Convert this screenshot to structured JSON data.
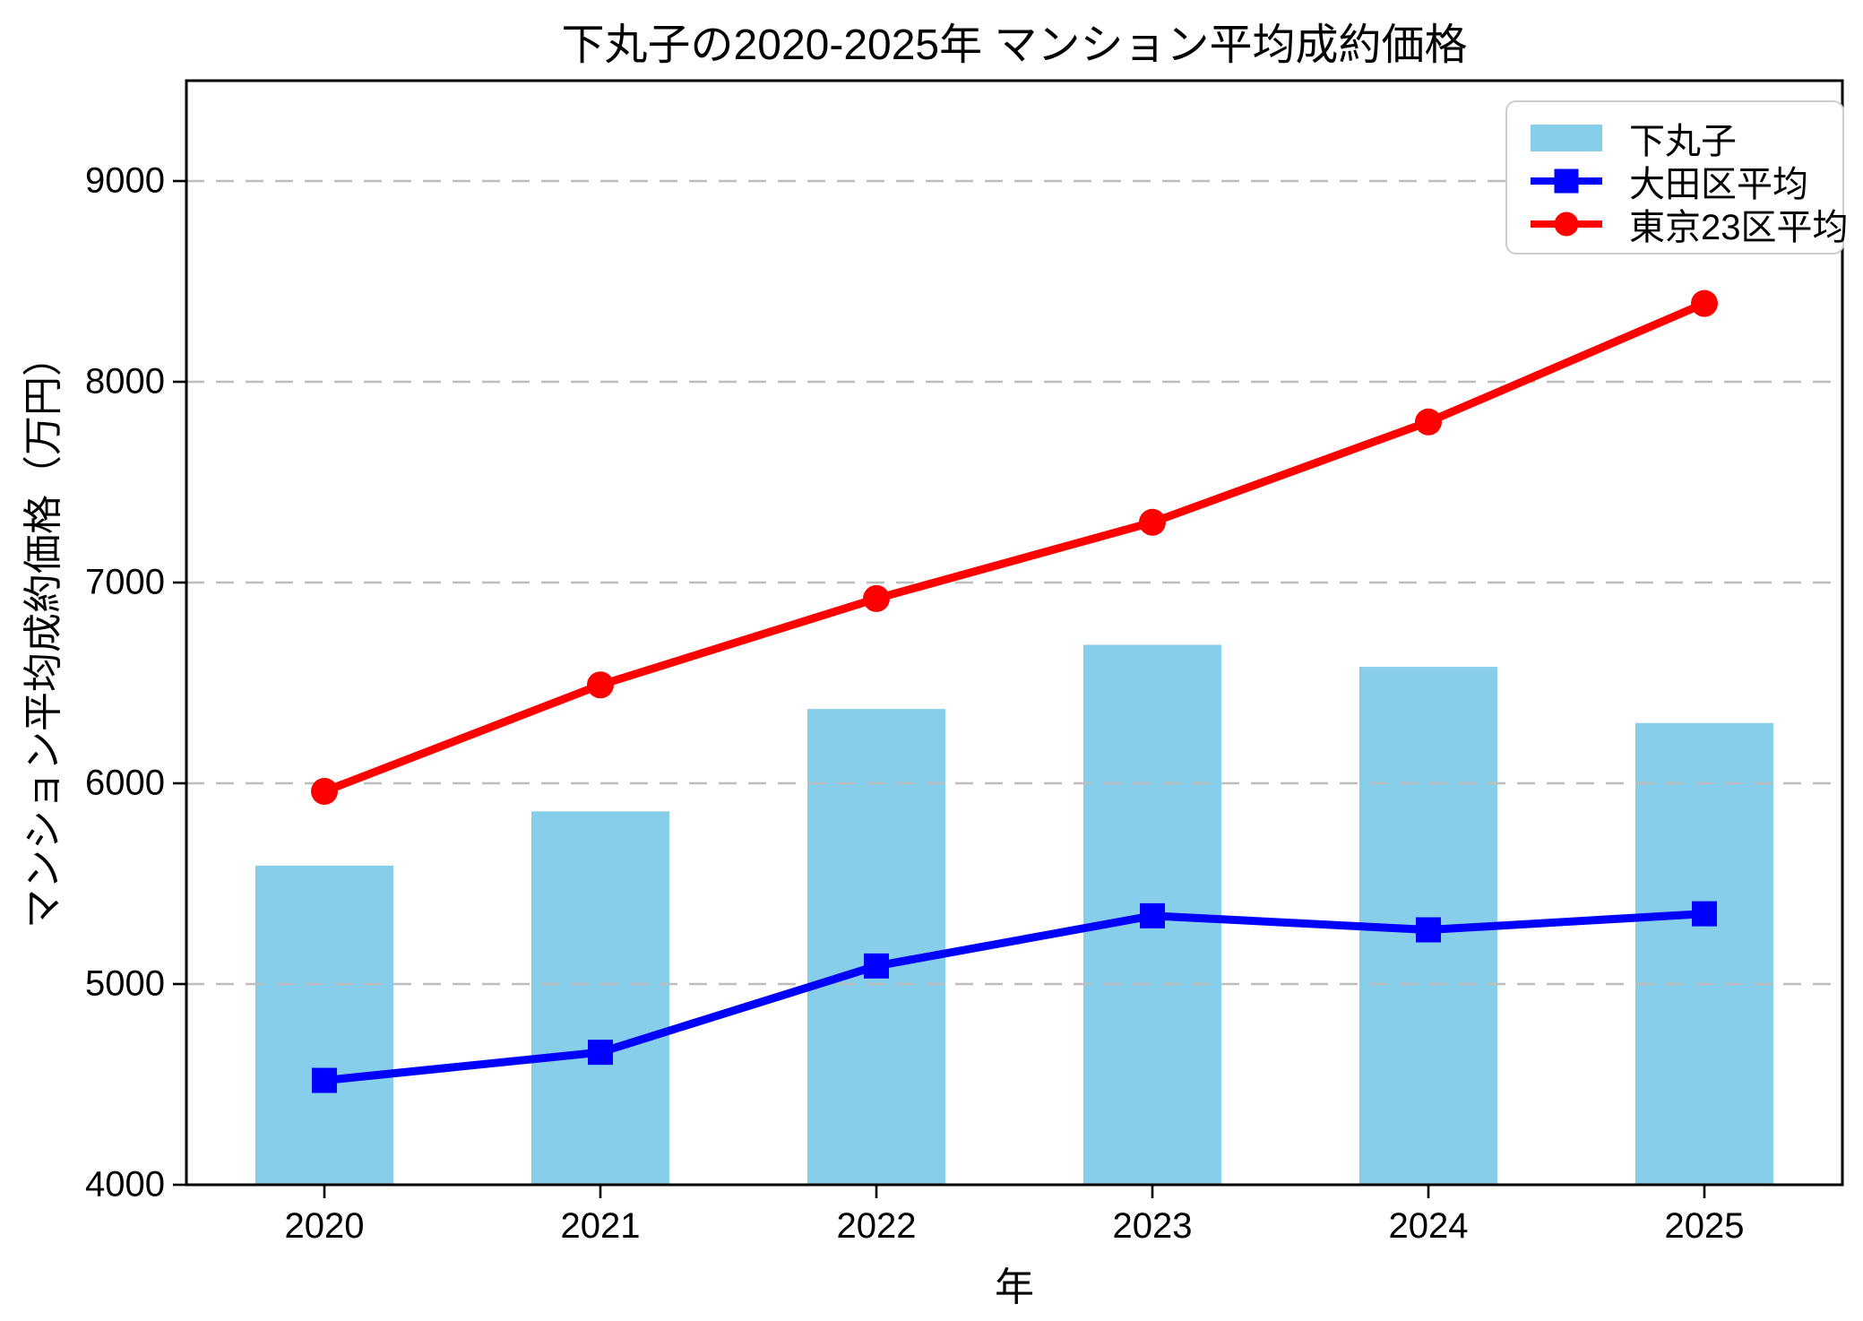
{
  "title": "下丸子の2020-2025年 マンション平均成約価格",
  "chart_data": {
    "type": "bar",
    "title": "下丸子の2020-2025年 マンション平均成約価格",
    "xlabel": "年",
    "ylabel": "マンション平均成約価格（万円）",
    "categories": [
      "2020",
      "2021",
      "2022",
      "2023",
      "2024",
      "2025"
    ],
    "yticks": [
      4000,
      5000,
      6000,
      7000,
      8000,
      9000
    ],
    "ylim": [
      4000,
      9500
    ],
    "grid": "horizontal-dashed",
    "legend_position": "upper-right",
    "series": [
      {
        "name": "下丸子",
        "type": "bar",
        "marker": "none",
        "color": "#87CEEB",
        "values": [
          5590,
          5860,
          6370,
          6690,
          6580,
          6300
        ]
      },
      {
        "name": "大田区平均",
        "type": "line",
        "marker": "square",
        "color": "#0000FF",
        "values": [
          4520,
          4660,
          5090,
          5340,
          5270,
          5350
        ]
      },
      {
        "name": "東京23区平均",
        "type": "line",
        "marker": "circle",
        "color": "#FF0000",
        "values": [
          5960,
          6490,
          6920,
          7300,
          7800,
          8390
        ]
      }
    ],
    "colors": {
      "background": "#ffffff",
      "grid": "#bdbdbd",
      "spine": "#000000",
      "legend_border": "#cccccc"
    }
  }
}
